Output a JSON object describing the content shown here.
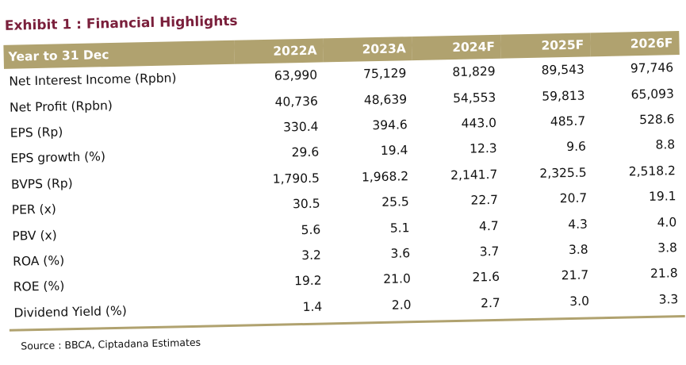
{
  "exhibit": {
    "title": "Exhibit 1 : Financial Highlights"
  },
  "table": {
    "header": {
      "label": "Year to 31 Dec",
      "years": [
        "2022A",
        "2023A",
        "2024F",
        "2025F",
        "2026F"
      ]
    },
    "rows": [
      {
        "label": "Net Interest Income (Rpbn)",
        "values": [
          "63,990",
          "75,129",
          "81,829",
          "89,543",
          "97,746"
        ]
      },
      {
        "label": "Net Profit (Rpbn)",
        "values": [
          "40,736",
          "48,639",
          "54,553",
          "59,813",
          "65,093"
        ]
      },
      {
        "label": "EPS  (Rp)",
        "values": [
          "330.4",
          "394.6",
          "443.0",
          "485.7",
          "528.6"
        ]
      },
      {
        "label": "EPS growth (%)",
        "values": [
          "29.6",
          "19.4",
          "12.3",
          "9.6",
          "8.8"
        ]
      },
      {
        "label": "BVPS (Rp)",
        "values": [
          "1,790.5",
          "1,968.2",
          "2,141.7",
          "2,325.5",
          "2,518.2"
        ]
      },
      {
        "label": "PER (x)",
        "values": [
          "30.5",
          "25.5",
          "22.7",
          "20.7",
          "19.1"
        ]
      },
      {
        "label": "PBV (x)",
        "values": [
          "5.6",
          "5.1",
          "4.7",
          "4.3",
          "4.0"
        ]
      },
      {
        "label": "ROA (%)",
        "values": [
          "3.2",
          "3.6",
          "3.7",
          "3.8",
          "3.8"
        ]
      },
      {
        "label": "ROE (%)",
        "values": [
          "19.2",
          "21.0",
          "21.6",
          "21.7",
          "21.8"
        ]
      },
      {
        "label": "Dividend Yield (%)",
        "values": [
          "1.4",
          "2.0",
          "2.7",
          "3.0",
          "3.3"
        ]
      }
    ]
  },
  "source": "Source : BBCA, Ciptadana Estimates",
  "colors": {
    "header_bg": "#b0a26f",
    "title": "#7a1f3b"
  }
}
